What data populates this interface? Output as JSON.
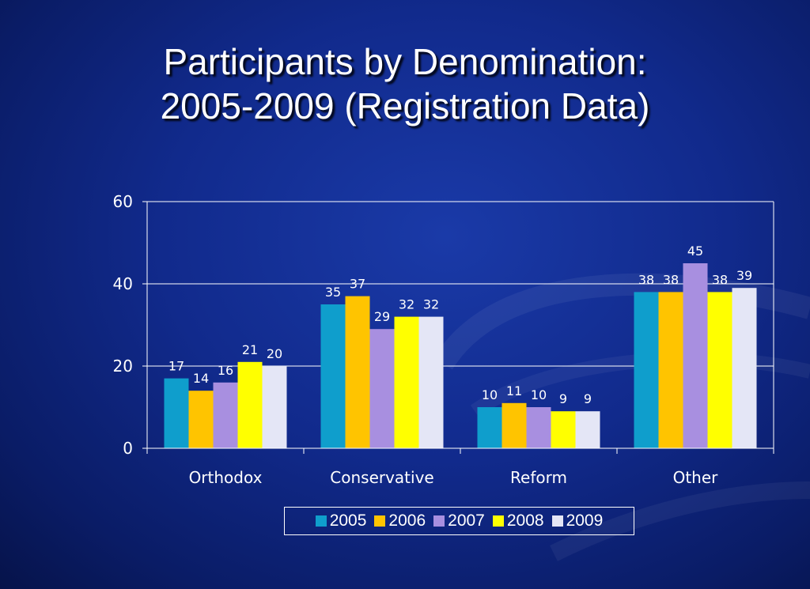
{
  "title_lines": [
    "Participants by Denomination:",
    "2005-2009 (Registration Data)"
  ],
  "chart_data": {
    "type": "bar",
    "categories": [
      "Orthodox",
      "Conservative",
      "Reform",
      "Other"
    ],
    "series": [
      {
        "name": "2005",
        "color": "#0f9ecc",
        "values": [
          17,
          35,
          10,
          38
        ]
      },
      {
        "name": "2006",
        "color": "#ffc400",
        "values": [
          14,
          37,
          11,
          38
        ]
      },
      {
        "name": "2007",
        "color": "#a88fe0",
        "values": [
          16,
          29,
          10,
          45
        ]
      },
      {
        "name": "2008",
        "color": "#ffff00",
        "values": [
          21,
          32,
          9,
          38
        ]
      },
      {
        "name": "2009",
        "color": "#e4e6f6",
        "values": [
          20,
          32,
          9,
          39
        ]
      }
    ],
    "ylim": [
      0,
      60
    ],
    "yticks": [
      0,
      20,
      40,
      60
    ],
    "grid": true,
    "legend_position": "bottom",
    "title": "Participants by Denomination: 2005-2009 (Registration Data)",
    "xlabel": "",
    "ylabel": ""
  }
}
